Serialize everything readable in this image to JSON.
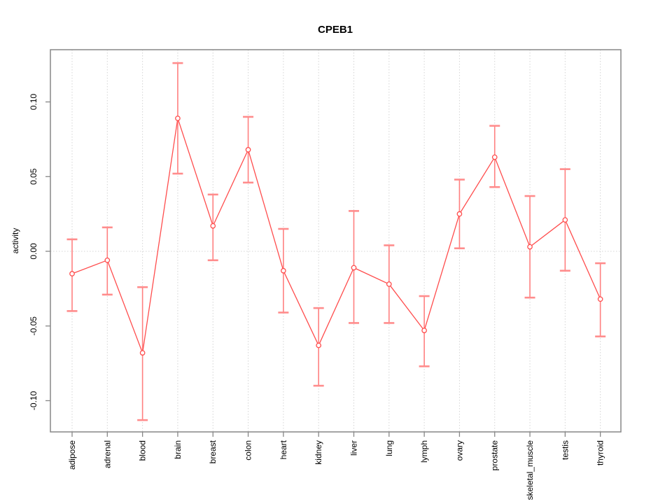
{
  "window": {
    "background_color": "#ffffff"
  },
  "chart_data": {
    "type": "line",
    "title": "CPEB1",
    "xlabel": "",
    "ylabel": "activity",
    "categories": [
      "adipose",
      "adrenal",
      "blood",
      "brain",
      "breast",
      "colon",
      "heart",
      "kidney",
      "liver",
      "lung",
      "lymph",
      "ovary",
      "prostate",
      "skeletal_muscle",
      "testis",
      "thyroid"
    ],
    "series": [
      {
        "name": "activity",
        "values": [
          -0.015,
          -0.006,
          -0.068,
          0.089,
          0.017,
          0.068,
          -0.013,
          -0.063,
          -0.011,
          -0.022,
          -0.053,
          0.025,
          0.063,
          0.003,
          0.021,
          -0.032
        ],
        "ci_low": [
          -0.04,
          -0.029,
          -0.113,
          0.052,
          -0.006,
          0.046,
          -0.041,
          -0.09,
          -0.048,
          -0.048,
          -0.077,
          0.002,
          0.043,
          -0.031,
          -0.013,
          -0.057
        ],
        "ci_high": [
          0.008,
          0.016,
          -0.024,
          0.126,
          0.038,
          0.09,
          0.015,
          -0.038,
          0.027,
          0.004,
          -0.03,
          0.048,
          0.084,
          0.037,
          0.055,
          -0.008
        ]
      }
    ],
    "ylim": [
      -0.118,
      0.13
    ],
    "yticks": [
      -0.1,
      -0.05,
      0.0,
      0.05,
      0.1
    ],
    "ytick_labels": [
      "-0.10",
      "-0.05",
      "0.00",
      "0.05",
      "0.10"
    ],
    "marker": "open-circle",
    "error_bars": true,
    "legend": null,
    "grid": {
      "vertical_dotted_per_category": true,
      "horizontal_dotted_at_zero": true
    },
    "colors": {
      "series_line": "#ff4d4d",
      "point_stroke": "#ff4d4d",
      "point_fill": "#ffffff",
      "error_bar": "#ff8080",
      "error_cap": "#ff8c8c",
      "grid_line": "#d4d4d4",
      "axis_frame": "#878787",
      "text": "#000000"
    }
  }
}
